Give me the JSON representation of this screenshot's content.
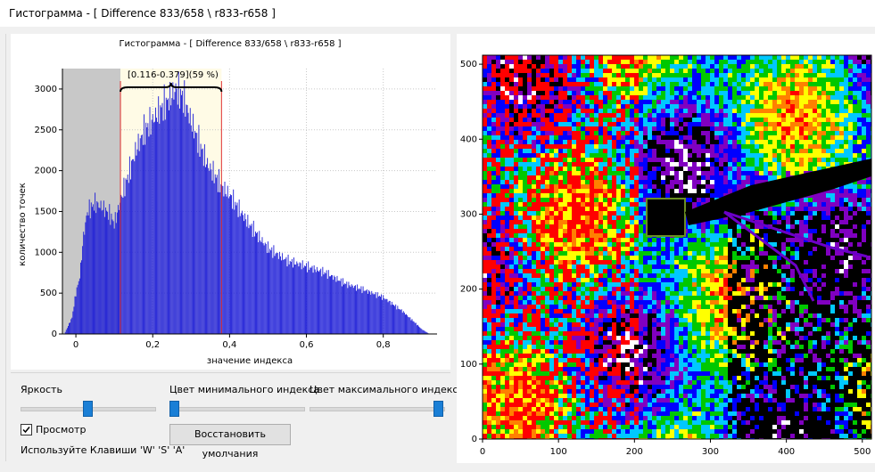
{
  "window": {
    "title": "Гистограмма - [ Difference 833/658 \\ r833-r658 ]"
  },
  "histogram": {
    "title": "Гистограмма - [ Difference 833/658 \\ r833-r658 ]",
    "selection_label": "[0.116-0.379](59 %)"
  },
  "controls": {
    "brightness_label": "Яркость",
    "min_color_label": "Цвет минимального индекса",
    "max_color_label": "Цвет максимального индекса",
    "preview_label": "Просмотр",
    "preview_checked": true,
    "hint": "Используйте Клавиши 'W' 'S' 'A'",
    "reset_button": "Восстановить умолчания",
    "brightness_level": 0.5,
    "min_color_level": 0.0,
    "max_color_level": 1.0
  },
  "chart_data": [
    {
      "type": "bar",
      "title": "Гистограмма - [ Difference 833/658 \\ r833-r658 ]",
      "xlabel": "значение индекса",
      "ylabel": "количество точек",
      "xlim": [
        -0.035,
        0.94
      ],
      "ylim": [
        0,
        3250
      ],
      "x_ticks": [
        "0",
        "0,2",
        "0,4",
        "0,6",
        "0,8"
      ],
      "x_tick_values": [
        0,
        0.2,
        0.4,
        0.6,
        0.8
      ],
      "y_ticks": [
        "0",
        "500",
        "1000",
        "1500",
        "2000",
        "2500",
        "3000"
      ],
      "y_tick_values": [
        0,
        500,
        1000,
        1500,
        2000,
        2500,
        3000
      ],
      "grid": true,
      "selection_range": [
        0.116,
        0.379
      ],
      "selection_percent": 59,
      "excluded_range": [
        -0.035,
        0.116
      ],
      "series": [
        {
          "color": "#1a1ad6",
          "x": [
            -0.03,
            -0.01,
            0.0,
            0.01,
            0.02,
            0.03,
            0.05,
            0.07,
            0.09,
            0.1,
            0.12,
            0.14,
            0.16,
            0.18,
            0.2,
            0.22,
            0.24,
            0.26,
            0.28,
            0.3,
            0.32,
            0.34,
            0.36,
            0.38,
            0.4,
            0.45,
            0.5,
            0.55,
            0.6,
            0.65,
            0.7,
            0.75,
            0.8,
            0.85,
            0.88,
            0.9,
            0.92
          ],
          "y": [
            0,
            200,
            500,
            700,
            1200,
            1500,
            1600,
            1550,
            1450,
            1350,
            1700,
            2000,
            2300,
            2500,
            2620,
            2750,
            2860,
            3000,
            2900,
            2600,
            2350,
            2100,
            1950,
            1800,
            1700,
            1350,
            1050,
            900,
            830,
            750,
            620,
            540,
            450,
            280,
            150,
            60,
            0
          ]
        }
      ]
    },
    {
      "type": "heatmap",
      "xlim": [
        0,
        512
      ],
      "ylim": [
        0,
        512
      ],
      "x_ticks": [
        "0",
        "100",
        "200",
        "300",
        "400",
        "500"
      ],
      "x_tick_values": [
        0,
        100,
        200,
        300,
        400,
        500
      ],
      "y_ticks": [
        "0",
        "100",
        "200",
        "300",
        "400",
        "500"
      ],
      "y_tick_values": [
        0,
        100,
        200,
        300,
        400,
        500
      ],
      "colormap": [
        "#ff0000",
        "#ff8000",
        "#ffff00",
        "#00c800",
        "#00c8ff",
        "#0000ff",
        "#8000c0",
        "#000000",
        "#ffffff"
      ]
    }
  ]
}
